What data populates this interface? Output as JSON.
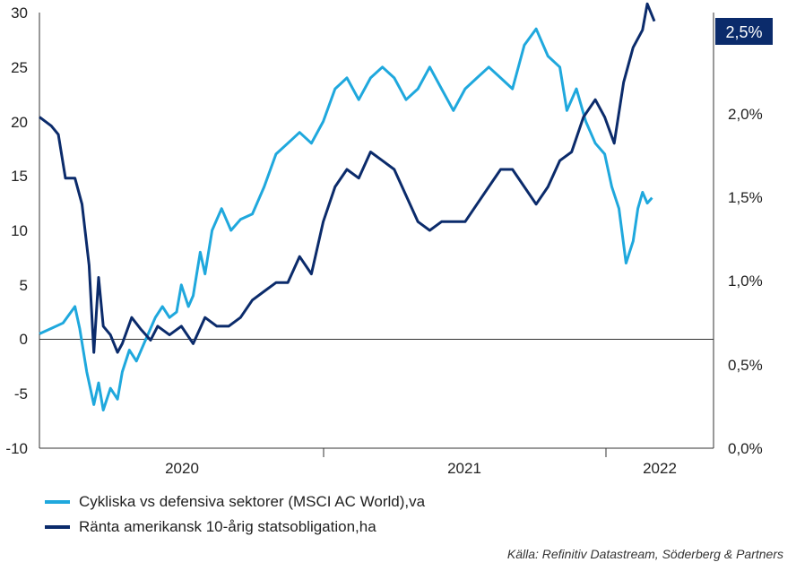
{
  "chart_data": {
    "type": "line",
    "left_axis": {
      "ylim": [
        -10,
        30
      ],
      "ticks": [
        "30",
        "25",
        "20",
        "15",
        "10",
        "5",
        "0",
        "-5",
        "-10"
      ]
    },
    "right_axis": {
      "ylim": [
        0.0,
        2.5
      ],
      "ticks": [
        "2,5%",
        "2,0%",
        "1,5%",
        "1,0%",
        "0,5%",
        "0,0%"
      ]
    },
    "x_axis": {
      "ticks": [
        "2020",
        "2021",
        "2022"
      ],
      "xlim": [
        2019.45,
        2022.3
      ]
    },
    "series": [
      {
        "name": "Cykliska vs defensiva sektorer (MSCI AC World),va",
        "axis": "left",
        "color": "#1fa8dd",
        "x": [
          2019.45,
          2019.5,
          2019.55,
          2019.6,
          2019.62,
          2019.65,
          2019.68,
          2019.7,
          2019.72,
          2019.75,
          2019.78,
          2019.8,
          2019.83,
          2019.86,
          2019.9,
          2019.94,
          2019.97,
          2020.0,
          2020.03,
          2020.05,
          2020.08,
          2020.1,
          2020.13,
          2020.15,
          2020.18,
          2020.22,
          2020.26,
          2020.3,
          2020.35,
          2020.4,
          2020.45,
          2020.5,
          2020.55,
          2020.6,
          2020.65,
          2020.7,
          2020.75,
          2020.8,
          2020.85,
          2020.9,
          2020.95,
          2021.0,
          2021.05,
          2021.1,
          2021.15,
          2021.2,
          2021.25,
          2021.3,
          2021.35,
          2021.4,
          2021.45,
          2021.5,
          2021.55,
          2021.6,
          2021.65,
          2021.68,
          2021.72,
          2021.76,
          2021.8,
          2021.84,
          2021.87,
          2021.9,
          2021.93,
          2021.96,
          2021.98,
          2022.0,
          2022.02,
          2022.04
        ],
        "values": [
          0.5,
          1.0,
          1.5,
          3.0,
          1.0,
          -3.0,
          -6.0,
          -4.0,
          -6.5,
          -4.5,
          -5.5,
          -3.0,
          -1.0,
          -2.0,
          0.0,
          2.0,
          3.0,
          2.0,
          2.5,
          5.0,
          3.0,
          4.0,
          8.0,
          6.0,
          10.0,
          12.0,
          10.0,
          11.0,
          11.5,
          14.0,
          17.0,
          18.0,
          19.0,
          18.0,
          20.0,
          23.0,
          24.0,
          22.0,
          24.0,
          25.0,
          24.0,
          22.0,
          23.0,
          25.0,
          23.0,
          21.0,
          23.0,
          24.0,
          25.0,
          24.0,
          23.0,
          27.0,
          28.5,
          26.0,
          25.0,
          21.0,
          23.0,
          20.0,
          18.0,
          17.0,
          14.0,
          12.0,
          7.0,
          9.0,
          12.0,
          13.5,
          12.5,
          13.0
        ]
      },
      {
        "name": "Ränta amerikansk 10-årig statsobligation,ha",
        "axis": "right",
        "color": "#0b2b6b",
        "x": [
          2019.45,
          2019.5,
          2019.53,
          2019.56,
          2019.6,
          2019.63,
          2019.66,
          2019.68,
          2019.7,
          2019.72,
          2019.75,
          2019.78,
          2019.8,
          2019.84,
          2019.88,
          2019.92,
          2019.95,
          2020.0,
          2020.05,
          2020.1,
          2020.15,
          2020.2,
          2020.25,
          2020.3,
          2020.35,
          2020.4,
          2020.45,
          2020.5,
          2020.55,
          2020.6,
          2020.65,
          2020.7,
          2020.75,
          2020.8,
          2020.85,
          2020.9,
          2020.95,
          2021.0,
          2021.05,
          2021.1,
          2021.15,
          2021.2,
          2021.25,
          2021.3,
          2021.35,
          2021.4,
          2021.45,
          2021.5,
          2021.55,
          2021.6,
          2021.65,
          2021.7,
          2021.75,
          2021.8,
          2021.84,
          2021.88,
          2021.92,
          2021.96,
          2022.0,
          2022.02,
          2022.05
        ],
        "values": [
          1.9,
          1.85,
          1.8,
          1.55,
          1.55,
          1.4,
          1.05,
          0.55,
          0.98,
          0.7,
          0.65,
          0.55,
          0.6,
          0.75,
          0.68,
          0.62,
          0.7,
          0.65,
          0.7,
          0.6,
          0.75,
          0.7,
          0.7,
          0.75,
          0.85,
          0.9,
          0.95,
          0.95,
          1.1,
          1.0,
          1.3,
          1.5,
          1.6,
          1.55,
          1.7,
          1.65,
          1.6,
          1.45,
          1.3,
          1.25,
          1.3,
          1.3,
          1.3,
          1.4,
          1.5,
          1.6,
          1.6,
          1.5,
          1.4,
          1.5,
          1.65,
          1.7,
          1.9,
          2.0,
          1.9,
          1.75,
          2.1,
          2.3,
          2.4,
          2.55,
          2.45
        ]
      }
    ],
    "zero_line": true,
    "last_value_label": "2,5%",
    "legend_position": "bottom-left"
  },
  "source": "Källa: Refinitiv Datastream, Söderberg & Partners"
}
